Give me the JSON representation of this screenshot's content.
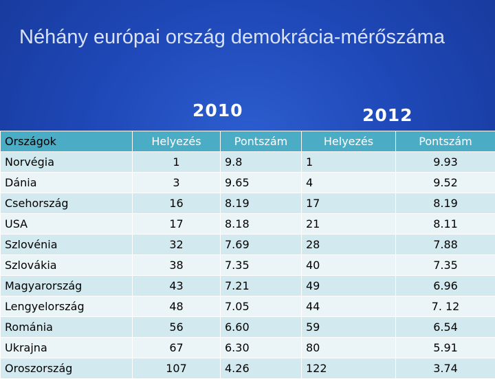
{
  "title": "Néhány európai ország demokrácia-mérőszáma",
  "years": {
    "first": "2010",
    "second": "2012"
  },
  "table": {
    "headers": [
      "Országok",
      "Helyezés",
      "Pontszám",
      "Helyezés",
      "Pontszám"
    ],
    "rows": [
      [
        "Norvégia",
        "1",
        "9.8",
        "1",
        "9.93"
      ],
      [
        "Dánia",
        "3",
        "9.65",
        "4",
        "9.52"
      ],
      [
        "Csehország",
        "16",
        "8.19",
        "17",
        "8.19"
      ],
      [
        "USA",
        "17",
        "8.18",
        "21",
        "8.11"
      ],
      [
        "Szlovénia",
        "32",
        "7.69",
        "28",
        "7.88"
      ],
      [
        "Szlovákia",
        "38",
        "7.35",
        "40",
        "7.35"
      ],
      [
        "Magyarország",
        "43",
        "7.21",
        "49",
        "6.96"
      ],
      [
        "Lengyelország",
        "48",
        "7.05",
        "44",
        "7. 12"
      ],
      [
        "Románia",
        "56",
        "6.60",
        "59",
        "6.54"
      ],
      [
        "Ukrajna",
        "67",
        "6.30",
        "80",
        "5.91"
      ],
      [
        "Oroszország",
        "107",
        "4.26",
        "122",
        "3.74"
      ]
    ]
  },
  "colors": {
    "background": "#1f48b8",
    "header_row": "#4bacc6",
    "row_odd": "#d2eaef",
    "row_even": "#ebf5f7"
  }
}
